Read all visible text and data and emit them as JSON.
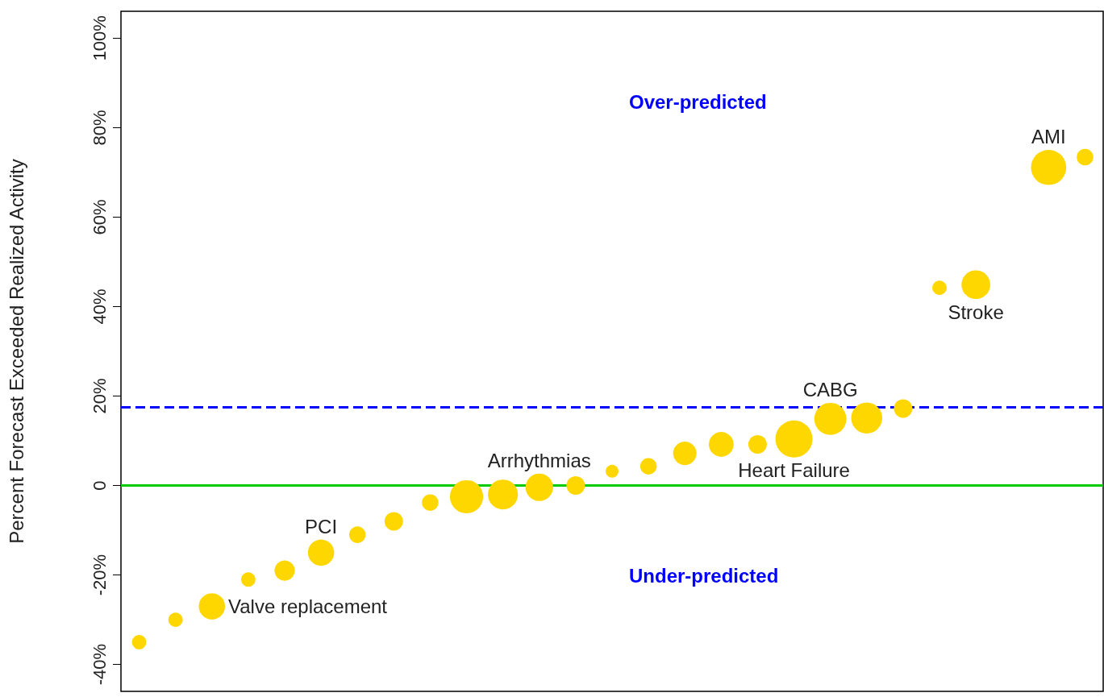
{
  "chart_data": {
    "type": "bubble",
    "ylabel": "Percent Forecast Exceeded Realized Activity",
    "categories": [
      null,
      null,
      null,
      null,
      null,
      null,
      null,
      null,
      null,
      null,
      null,
      null,
      null,
      null,
      null,
      null,
      null,
      null,
      null,
      null,
      null,
      null,
      null,
      null,
      null,
      null,
      null
    ],
    "values": [
      -35,
      -30,
      -27,
      -21,
      -19,
      -15,
      -11,
      -8,
      -3.8,
      -2.5,
      -2,
      -0.4,
      0,
      3.2,
      4.3,
      7.2,
      9.2,
      9.2,
      10.4,
      14.9,
      15.1,
      17.2,
      44.2,
      44.9,
      null,
      71.1,
      73.4
    ],
    "sizes": [
      0.15,
      0.15,
      0.5,
      0.15,
      0.3,
      0.5,
      0.2,
      0.25,
      0.2,
      0.8,
      0.65,
      0.55,
      0.25,
      0.12,
      0.2,
      0.4,
      0.45,
      0.25,
      1,
      0.75,
      0.7,
      0.25,
      0.15,
      0.6,
      null,
      0.9,
      0.2
    ],
    "value_labels": [
      null,
      null,
      "Valve replacement",
      null,
      null,
      "PCI",
      null,
      null,
      null,
      null,
      null,
      "Arrhythmias",
      null,
      null,
      null,
      null,
      null,
      null,
      "Heart Failure",
      "CABG",
      null,
      null,
      null,
      "Stroke",
      null,
      "AMI",
      null
    ],
    "color": "#ffd700",
    "marker": "circle",
    "ylim": [
      -46,
      106
    ],
    "yticks": [
      {
        "value": -40,
        "label": "-40%"
      },
      {
        "value": -20,
        "label": "-20%"
      },
      0,
      {
        "value": 20,
        "label": "20%"
      },
      {
        "value": 40,
        "label": "40%"
      },
      {
        "value": 60,
        "label": "60%"
      },
      {
        "value": 80,
        "label": "80%"
      },
      {
        "value": 100,
        "label": "100%"
      }
    ],
    "ref_lines": [
      {
        "axis": "y",
        "value": 0,
        "color": "#00cc00",
        "line_style": "solid"
      },
      {
        "axis": "y",
        "value": 17.5,
        "color": "#0000ff",
        "line_style": "dashed"
      }
    ],
    "annotations": [
      "Over-predicted",
      "Under-predicted"
    ],
    "tick_labels": "y",
    "grid": false
  }
}
